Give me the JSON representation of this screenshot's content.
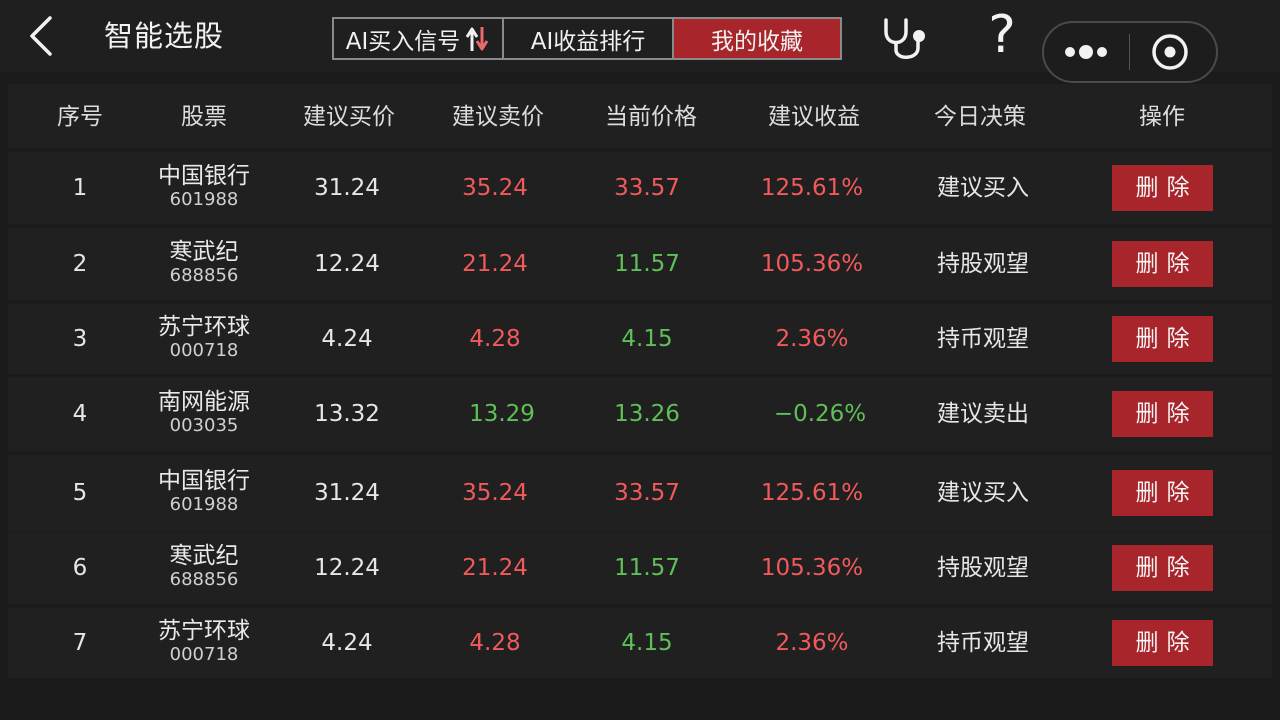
{
  "header": {
    "title": "智能选股",
    "tabs": [
      {
        "label": "AI买入信号",
        "active": false
      },
      {
        "label": "AI收益排行",
        "active": false
      },
      {
        "label": "我的收藏",
        "active": true
      }
    ],
    "help_label": "?"
  },
  "colors": {
    "accent_red": "#a8262b",
    "rise": "#f05a5a",
    "fall": "#5fbf58",
    "background": "#1b1b1b"
  },
  "table": {
    "columns": [
      "序号",
      "股票",
      "建议买价",
      "建议卖价",
      "当前价格",
      "建议收益",
      "今日决策",
      "操作"
    ],
    "delete_label": "删除",
    "rows": [
      {
        "index": "1",
        "name": "中国银行",
        "code": "601988",
        "buy": "31.24",
        "sell": "35.24",
        "sell_color": "red",
        "current": "33.57",
        "current_color": "red",
        "profit": "125.61%",
        "profit_color": "red",
        "decision": "建议买入"
      },
      {
        "index": "2",
        "name": "寒武纪",
        "code": "688856",
        "buy": "12.24",
        "sell": "21.24",
        "sell_color": "red",
        "current": "11.57",
        "current_color": "green",
        "profit": "105.36%",
        "profit_color": "red",
        "decision": "持股观望"
      },
      {
        "index": "3",
        "name": "苏宁环球",
        "code": "000718",
        "buy": "4.24",
        "sell": "4.28",
        "sell_color": "red",
        "current": "4.15",
        "current_color": "green",
        "profit": "2.36%",
        "profit_color": "red",
        "decision": "持币观望"
      },
      {
        "index": "4",
        "name": "南网能源",
        "code": "003035",
        "buy": "13.32",
        "sell": "13.29",
        "sell_color": "green",
        "current": "13.26",
        "current_color": "green",
        "profit": "−0.26%",
        "profit_color": "green",
        "decision": "建议卖出"
      },
      {
        "index": "5",
        "name": "中国银行",
        "code": "601988",
        "buy": "31.24",
        "sell": "35.24",
        "sell_color": "red",
        "current": "33.57",
        "current_color": "red",
        "profit": "125.61%",
        "profit_color": "red",
        "decision": "建议买入"
      },
      {
        "index": "6",
        "name": "寒武纪",
        "code": "688856",
        "buy": "12.24",
        "sell": "21.24",
        "sell_color": "red",
        "current": "11.57",
        "current_color": "green",
        "profit": "105.36%",
        "profit_color": "red",
        "decision": "持股观望"
      },
      {
        "index": "7",
        "name": "苏宁环球",
        "code": "000718",
        "buy": "4.24",
        "sell": "4.28",
        "sell_color": "red",
        "current": "4.15",
        "current_color": "green",
        "profit": "2.36%",
        "profit_color": "red",
        "decision": "持币观望"
      }
    ]
  }
}
